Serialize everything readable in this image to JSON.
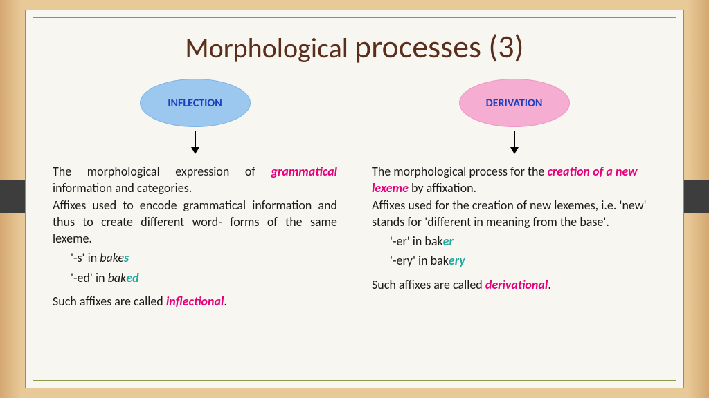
{
  "title": {
    "part1": "Morphological ",
    "part2": "processes (3)"
  },
  "colors": {
    "title_color": "#5a2e1a",
    "ellipse_blue_fill": "#9cc8f0",
    "ellipse_pink_fill": "#f5aed1",
    "ellipse_label_color": "#1a3fbf",
    "pink_highlight": "#e6007e",
    "teal_highlight": "#1fa8a0",
    "panel_background": "#f7f6f0",
    "panel_border": "#8a9a4a",
    "wood_background": "#e8c998"
  },
  "left": {
    "label": "INFLECTION",
    "p1a": "The morphological  expression of ",
    "p1_hl": "grammatical",
    "p1b": " information and categories.",
    "p2": "Affixes used to encode grammatical information and thus to create different word-  forms of the same lexeme.",
    "ex1_pre": "'-s' in ",
    "ex1_it": "bake",
    "ex1_hl": "s",
    "ex2_pre": "'-ed' in ",
    "ex2_it": "bak",
    "ex2_hl": "ed",
    "p3a": "Such affixes are called ",
    "p3_hl": "inflectional",
    "p3b": "."
  },
  "right": {
    "label": "DERIVATION",
    "p1a": "The morphological process for  the ",
    "p1_hl": "creation of a new lexeme",
    "p1b": "  by affixation.",
    "p2": "Affixes used for the creation  of new lexemes, i.e. 'new' stands  for 'different in meaning from the base'.",
    "ex1_pre": "'-er' in bak",
    "ex1_hl": "er",
    "ex2_pre": "'-ery' in bak",
    "ex2_hl": "ery",
    "p3a": "Such affixes are called ",
    "p3_hl": "derivational",
    "p3b": "."
  }
}
